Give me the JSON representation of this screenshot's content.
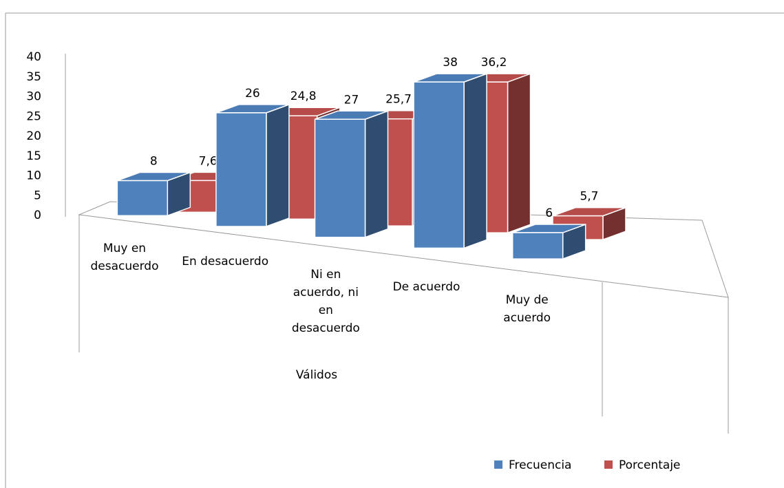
{
  "chart_data": {
    "type": "bar3d",
    "categories": [
      "Muy en desacuerdo",
      "En desacuerdo",
      "Ni en acuerdo, ni en desacuerdo",
      "De acuerdo",
      "Muy de acuerdo"
    ],
    "group_label": "Válidos",
    "series": [
      {
        "name": "Frecuencia",
        "color": "#4f81bd",
        "values": [
          8,
          26,
          27,
          38,
          6
        ]
      },
      {
        "name": "Porcentaje",
        "color": "#c0504d",
        "values": [
          7.6,
          24.8,
          25.7,
          36.2,
          5.7
        ],
        "value_labels": [
          "7,6",
          "24,8",
          "25,7",
          "36,2",
          "5,7"
        ]
      }
    ],
    "ylim": [
      0,
      40
    ],
    "yticks": [
      0,
      5,
      10,
      15,
      20,
      25,
      30,
      35,
      40
    ],
    "grid": false,
    "legend": "bottom"
  }
}
